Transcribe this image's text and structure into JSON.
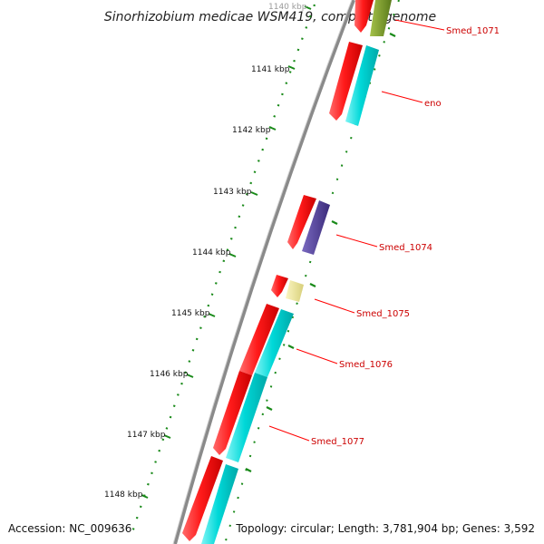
{
  "map": {
    "title": "Sinorhizobium medicae WSM419, complete genome",
    "accession": "Accession: NC_009636",
    "summary": "Topology: circular; Length: 3,781,904 bp; Genes: 3,592"
  },
  "colors": {
    "backbone": "#8a8a8a",
    "cds_forward": "#ff1a1a",
    "cds_reverse": "#00d8d8",
    "tick_dots": "#1a8a1a",
    "label_text": "#cc0000",
    "leader": "#ff0000",
    "gene_smed_1071_rna": "#6b8e23",
    "gene_smed_1074_alt": "#4b3a8f",
    "gene_smed_1075_alt": "#e8e08a"
  },
  "scale": {
    "ticks": [
      {
        "label": "1140 kbp"
      },
      {
        "label": "1141 kbp"
      },
      {
        "label": "1142 kbp"
      },
      {
        "label": "1143 kbp"
      },
      {
        "label": "1144 kbp"
      },
      {
        "label": "1145 kbp"
      },
      {
        "label": "1146 kbp"
      },
      {
        "label": "1147 kbp"
      },
      {
        "label": "1148 kbp"
      }
    ]
  },
  "genes": [
    {
      "label": "Smed_1071"
    },
    {
      "label": "eno"
    },
    {
      "label": "Smed_1074"
    },
    {
      "label": "Smed_1075"
    },
    {
      "label": "Smed_1076"
    },
    {
      "label": "Smed_1077"
    }
  ]
}
